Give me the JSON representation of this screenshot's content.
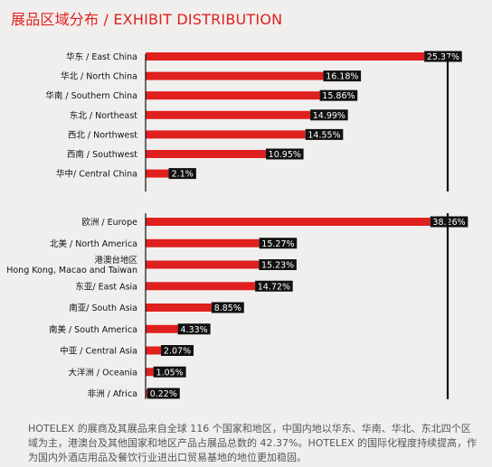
{
  "title": "展品区域分布 / EXHIBIT DISTRIBUTION",
  "description": "HOTELEX 的展商及其展品来自全球 116 个国家和地区，中国内地以华东、华南、华北、东北四个区域为主，港澳台及其他国家和地区产品占展品总数的 42.37%。HOTELEX 的国际化程度持续提高，作为国内外酒店用品及餐饮行业进出口贸易基地的地位更加稳固。",
  "colors": {
    "bar": "#e0201f",
    "label_bg": "#111111",
    "title": "#e0201f",
    "axis": "#111111"
  },
  "chart_data": [
    {
      "type": "bar",
      "orientation": "horizontal",
      "xlim": [
        0,
        27.5
      ],
      "series": [
        {
          "categories": [
            "华东 / East China",
            "华北 / North China",
            "华南 / Southern China",
            "东北 / Northeast",
            "西北 / Northwest",
            "西南 / Southwest",
            "华中/ Central China"
          ],
          "values": [
            25.37,
            16.18,
            15.86,
            14.99,
            14.55,
            10.95,
            2.1
          ],
          "labels": [
            "25.37%",
            "16.18%",
            "15.86%",
            "14.99%",
            "14.55%",
            "10.95%",
            "2.1%"
          ]
        }
      ]
    },
    {
      "type": "bar",
      "orientation": "horizontal",
      "xlim": [
        0,
        40.6
      ],
      "series": [
        {
          "categories": [
            "欧洲 / Europe",
            "北美 / North America",
            "港澳台地区\nHong Kong, Macao and Taiwan",
            "东亚/ East Asia",
            "南亚/ South Asia",
            "南美 / South America",
            "中亚 / Central Asia",
            "大洋洲 / Oceania",
            "非洲 / Africa"
          ],
          "values": [
            38.26,
            15.27,
            15.23,
            14.72,
            8.85,
            4.33,
            2.07,
            1.05,
            0.22
          ],
          "labels": [
            "38.26%",
            "15.27%",
            "15.23%",
            "14.72%",
            "8.85%",
            "4.33%",
            "2.07%",
            "1.05%",
            "0.22%"
          ]
        }
      ]
    }
  ]
}
